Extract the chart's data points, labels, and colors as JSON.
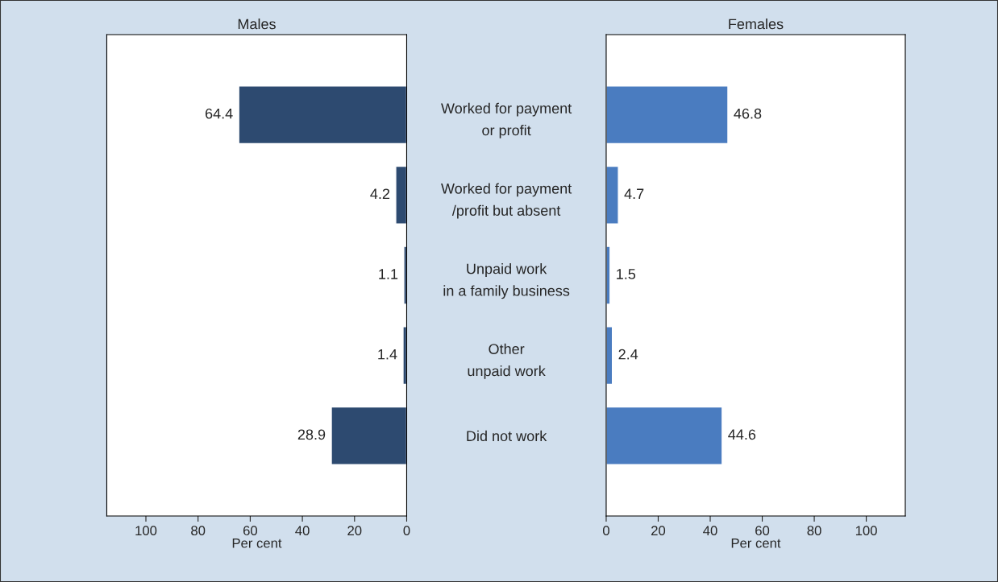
{
  "chart_data": [
    {
      "type": "bar",
      "orientation": "horizontal",
      "title": "Males",
      "xlabel": "Per cent",
      "categories": [
        "Worked for payment\nor profit",
        "Worked for payment\n/profit but absent",
        "Unpaid work\nin a family business",
        "Other\nunpaid work",
        "Did not work"
      ],
      "values": [
        64.4,
        4.2,
        1.1,
        1.4,
        28.9
      ],
      "color": "#2d4a70",
      "xlim": [
        115,
        0
      ],
      "xticks": [
        100,
        80,
        60,
        40,
        20,
        0
      ],
      "data_labels": true
    },
    {
      "type": "bar",
      "orientation": "horizontal",
      "title": "Females",
      "xlabel": "Per cent",
      "categories": [
        null,
        null,
        null,
        null,
        null
      ],
      "values": [
        46.8,
        4.7,
        1.5,
        2.4,
        44.6
      ],
      "color": "#4a7cc0",
      "xlim": [
        0,
        115
      ],
      "xticks": [
        0,
        20,
        40,
        60,
        80,
        100
      ],
      "data_labels": true
    }
  ]
}
